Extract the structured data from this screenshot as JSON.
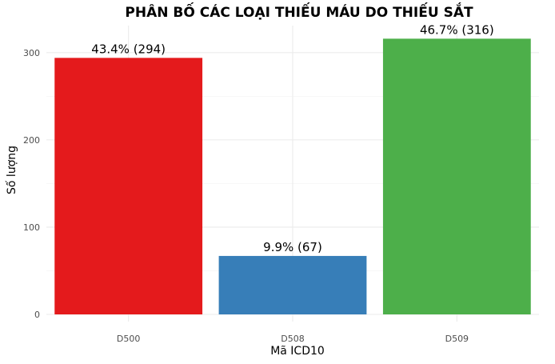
{
  "chart_data": {
    "type": "bar",
    "title": "PHÂN BỐ CÁC LOẠI THIẾU MÁU DO THIẾU SẮT",
    "xlabel": "Mã ICD10",
    "ylabel": "Số lượng",
    "categories": [
      "D500",
      "D508",
      "D509"
    ],
    "values": [
      294,
      67,
      316
    ],
    "data_labels": [
      "43.4% (294)",
      "9.9% (67)",
      "46.7% (316)"
    ],
    "colors": [
      "#E41A1C",
      "#377EB8",
      "#4DAF4A"
    ],
    "ylim": [
      0,
      331
    ],
    "y_ticks": [
      0,
      100,
      200,
      300
    ],
    "y_tick_labels": [
      "0",
      "100",
      "200",
      "300"
    ],
    "grid": true,
    "legend": "none"
  }
}
